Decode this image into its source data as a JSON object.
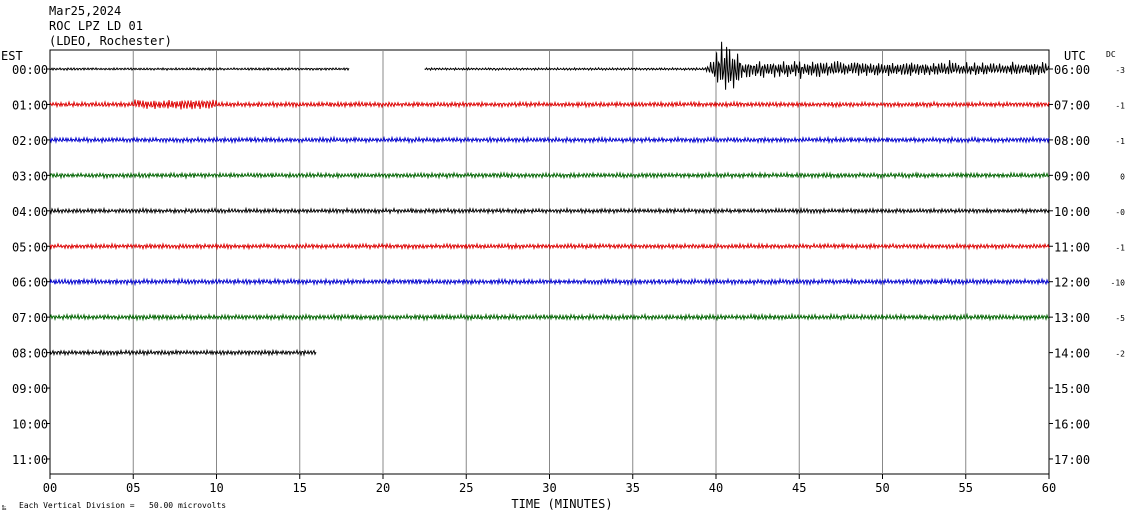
{
  "header": {
    "date": "Mar25,2024",
    "station": "ROC LPZ LD 01",
    "network": "(LDEO, Rochester)"
  },
  "left_axis_label": "EST",
  "right_axis_label": "UTC",
  "dc_label": "DC",
  "xlabel": "TIME (MINUTES)",
  "footer_note": "Each Vertical Division =   50.00 microvolts",
  "chart_data": {
    "type": "line",
    "title": "",
    "xlabel": "TIME (MINUTES)",
    "xlim": [
      0,
      60
    ],
    "x_ticks": [
      "00",
      "05",
      "10",
      "15",
      "20",
      "25",
      "30",
      "35",
      "40",
      "45",
      "50",
      "55",
      "60"
    ],
    "grid": true,
    "rows": [
      {
        "left": "00:00",
        "right": "06:00",
        "dc": "-3",
        "color": "#000000",
        "segments": [
          [
            0,
            18
          ],
          [
            22.5,
            60
          ]
        ],
        "amp": 1.2,
        "event": {
          "start": 39.3,
          "peak": 40.3,
          "peak_amp": 28,
          "coda_amp": 9
        }
      },
      {
        "left": "01:00",
        "right": "07:00",
        "dc": "-1",
        "color": "#dd0000",
        "segments": [
          [
            0,
            60
          ]
        ],
        "amp": 2.5,
        "burst": [
          5,
          10,
          5
        ]
      },
      {
        "left": "02:00",
        "right": "08:00",
        "dc": "-1",
        "color": "#0000cc",
        "segments": [
          [
            0,
            60
          ]
        ],
        "amp": 2.5
      },
      {
        "left": "03:00",
        "right": "09:00",
        "dc": "0",
        "color": "#006400",
        "segments": [
          [
            0,
            60
          ]
        ],
        "amp": 2.5
      },
      {
        "left": "04:00",
        "right": "10:00",
        "dc": "-0",
        "color": "#000000",
        "segments": [
          [
            0,
            60
          ]
        ],
        "amp": 2.3
      },
      {
        "left": "05:00",
        "right": "11:00",
        "dc": "-1",
        "color": "#dd0000",
        "segments": [
          [
            0,
            60
          ]
        ],
        "amp": 2.4
      },
      {
        "left": "06:00",
        "right": "12:00",
        "dc": "-10",
        "color": "#0000cc",
        "segments": [
          [
            0,
            60
          ]
        ],
        "amp": 2.6
      },
      {
        "left": "07:00",
        "right": "13:00",
        "dc": "-5",
        "color": "#006400",
        "segments": [
          [
            0,
            60
          ]
        ],
        "amp": 2.7
      },
      {
        "left": "08:00",
        "right": "14:00",
        "dc": "-2",
        "color": "#000000",
        "segments": [
          [
            0,
            16
          ]
        ],
        "amp": 2.4
      },
      {
        "left": "09:00",
        "right": "15:00",
        "dc": "",
        "color": "#000000",
        "segments": []
      },
      {
        "left": "10:00",
        "right": "16:00",
        "dc": "",
        "color": "#000000",
        "segments": []
      },
      {
        "left": "11:00",
        "right": "17:00",
        "dc": "",
        "color": "#000000",
        "segments": []
      }
    ]
  }
}
